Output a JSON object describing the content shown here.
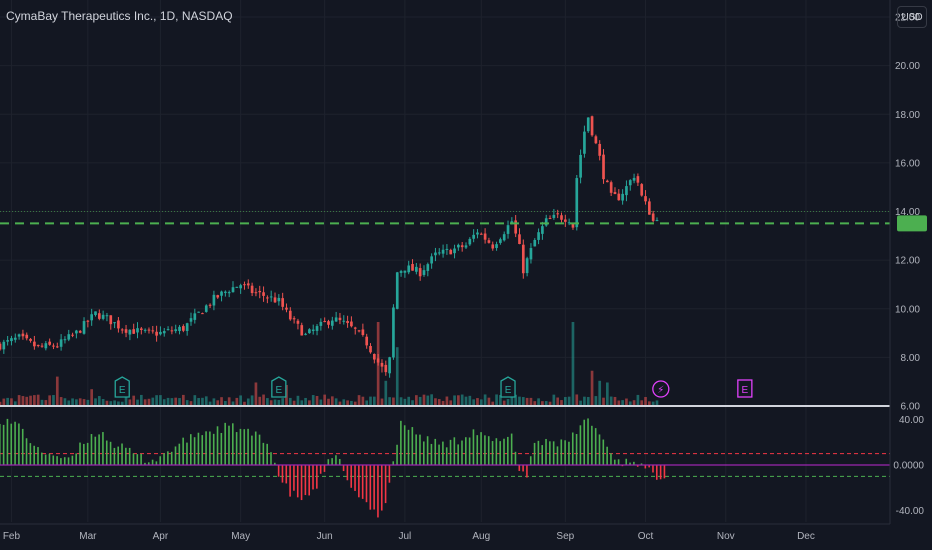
{
  "header": {
    "symbol": "CymaBay Therapeutics Inc., 1D, NASDAQ",
    "currency": "USD"
  },
  "last_price": "13.51",
  "colors": {
    "background": "#131722",
    "up": "#26a69a",
    "down": "#ef5350",
    "price_line": "#4caf50",
    "hist_pos": "#4caf50",
    "hist_neg": "#f23645",
    "signal_line": "#9c27b0",
    "earnings_past": "#26a69a",
    "earnings_future": "#e040fb"
  },
  "chart_data": [
    {
      "type": "candlestick",
      "title": "CymaBay Therapeutics Inc., 1D, NASDAQ",
      "y_axis": {
        "ticks": [
          "6.00",
          "8.00",
          "10.00",
          "12.00",
          "14.00",
          "16.00",
          "18.00",
          "20.00",
          "22.00"
        ],
        "ylim": [
          6,
          22.7
        ]
      },
      "x_axis": {
        "labels": [
          "Feb",
          "Mar",
          "Apr",
          "May",
          "Jun",
          "Jul",
          "Aug",
          "Sep",
          "Oct",
          "Nov",
          "Dec"
        ],
        "xlim": [
          0,
          233
        ]
      },
      "x_label_positions": [
        3,
        23,
        42,
        63,
        85,
        106,
        126,
        148,
        169,
        190,
        211
      ],
      "last_price_line": 13.51,
      "close_anchors": [
        [
          0,
          8.5
        ],
        [
          5,
          8.8
        ],
        [
          10,
          8.4
        ],
        [
          15,
          8.5
        ],
        [
          20,
          9.0
        ],
        [
          25,
          9.8
        ],
        [
          28,
          9.6
        ],
        [
          32,
          9.2
        ],
        [
          38,
          9.0
        ],
        [
          42,
          9.0
        ],
        [
          48,
          9.2
        ],
        [
          52,
          9.8
        ],
        [
          56,
          10.4
        ],
        [
          60,
          10.8
        ],
        [
          63,
          11.0
        ],
        [
          66,
          10.7
        ],
        [
          70,
          10.5
        ],
        [
          73,
          10.3
        ],
        [
          76,
          9.6
        ],
        [
          80,
          8.9
        ],
        [
          84,
          9.3
        ],
        [
          87,
          9.6
        ],
        [
          90,
          9.4
        ],
        [
          93,
          9.1
        ],
        [
          96,
          8.6
        ],
        [
          99,
          7.8
        ],
        [
          101,
          7.3
        ],
        [
          102,
          7.9
        ],
        [
          103,
          10.0
        ],
        [
          104,
          11.5
        ],
        [
          106,
          11.7
        ],
        [
          110,
          11.5
        ],
        [
          114,
          12.2
        ],
        [
          118,
          12.4
        ],
        [
          122,
          12.6
        ],
        [
          125,
          13.2
        ],
        [
          127,
          12.9
        ],
        [
          129,
          12.6
        ],
        [
          132,
          13.2
        ],
        [
          134,
          13.6
        ],
        [
          136,
          12.5
        ],
        [
          137,
          11.6
        ],
        [
          138,
          12.0
        ],
        [
          140,
          12.8
        ],
        [
          143,
          13.6
        ],
        [
          146,
          13.8
        ],
        [
          149,
          13.7
        ],
        [
          150,
          13.4
        ],
        [
          151,
          15.4
        ],
        [
          153,
          17.3
        ],
        [
          154,
          17.9
        ],
        [
          155,
          17.3
        ],
        [
          157,
          16.2
        ],
        [
          158,
          15.5
        ],
        [
          160,
          14.6
        ],
        [
          162,
          14.6
        ],
        [
          164,
          15.0
        ],
        [
          166,
          15.5
        ],
        [
          167,
          15.2
        ],
        [
          168,
          14.6
        ],
        [
          170,
          14.0
        ],
        [
          171,
          13.6
        ],
        [
          172,
          13.8
        ]
      ],
      "volume_spikes": [
        [
          15,
          0.35
        ],
        [
          24,
          0.2
        ],
        [
          33,
          0.27
        ],
        [
          67,
          0.28
        ],
        [
          75,
          0.25
        ],
        [
          99,
          1.0
        ],
        [
          101,
          0.3
        ],
        [
          104,
          0.7
        ],
        [
          150,
          1.0
        ],
        [
          155,
          0.42
        ],
        [
          157,
          0.3
        ],
        [
          159,
          0.28
        ]
      ],
      "events": [
        {
          "type": "earnings",
          "x": 32,
          "label": "E",
          "status": "past"
        },
        {
          "type": "earnings",
          "x": 73,
          "label": "E",
          "status": "past"
        },
        {
          "type": "earnings",
          "x": 133,
          "label": "E",
          "status": "past"
        },
        {
          "type": "dividend-lightning",
          "x": 173,
          "label": "⚡",
          "status": "future"
        },
        {
          "type": "earnings",
          "x": 195,
          "label": "E",
          "status": "future"
        }
      ]
    },
    {
      "type": "bar",
      "title": "",
      "y_axis": {
        "ticks": [
          "40.00",
          "0.0000",
          "-40.00"
        ],
        "ylim": [
          -50,
          50
        ]
      },
      "hist_anchors": [
        [
          0,
          40
        ],
        [
          5,
          35
        ],
        [
          10,
          12
        ],
        [
          14,
          10
        ],
        [
          18,
          3
        ],
        [
          22,
          20
        ],
        [
          26,
          30
        ],
        [
          30,
          18
        ],
        [
          34,
          12
        ],
        [
          38,
          5
        ],
        [
          41,
          5
        ],
        [
          44,
          12
        ],
        [
          48,
          20
        ],
        [
          52,
          28
        ],
        [
          56,
          30
        ],
        [
          60,
          34
        ],
        [
          64,
          30
        ],
        [
          68,
          24
        ],
        [
          71,
          15
        ],
        [
          73,
          -10
        ],
        [
          76,
          -25
        ],
        [
          80,
          -30
        ],
        [
          83,
          -18
        ],
        [
          86,
          2
        ],
        [
          88,
          5
        ],
        [
          90,
          -2
        ],
        [
          92,
          -22
        ],
        [
          96,
          -35
        ],
        [
          99,
          -43
        ],
        [
          101,
          -32
        ],
        [
          103,
          2
        ],
        [
          105,
          38
        ],
        [
          108,
          30
        ],
        [
          112,
          22
        ],
        [
          116,
          18
        ],
        [
          120,
          22
        ],
        [
          124,
          30
        ],
        [
          128,
          22
        ],
        [
          132,
          20
        ],
        [
          134,
          30
        ],
        [
          136,
          -5
        ],
        [
          138,
          -8
        ],
        [
          140,
          20
        ],
        [
          144,
          22
        ],
        [
          148,
          18
        ],
        [
          150,
          25
        ],
        [
          152,
          35
        ],
        [
          154,
          40
        ],
        [
          156,
          32
        ],
        [
          158,
          22
        ],
        [
          160,
          10
        ],
        [
          163,
          2
        ],
        [
          166,
          5
        ],
        [
          169,
          -4
        ],
        [
          172,
          -10
        ],
        [
          174,
          -8
        ]
      ],
      "signal_line_value": 0,
      "upper_band": 10,
      "lower_band": -10
    }
  ]
}
